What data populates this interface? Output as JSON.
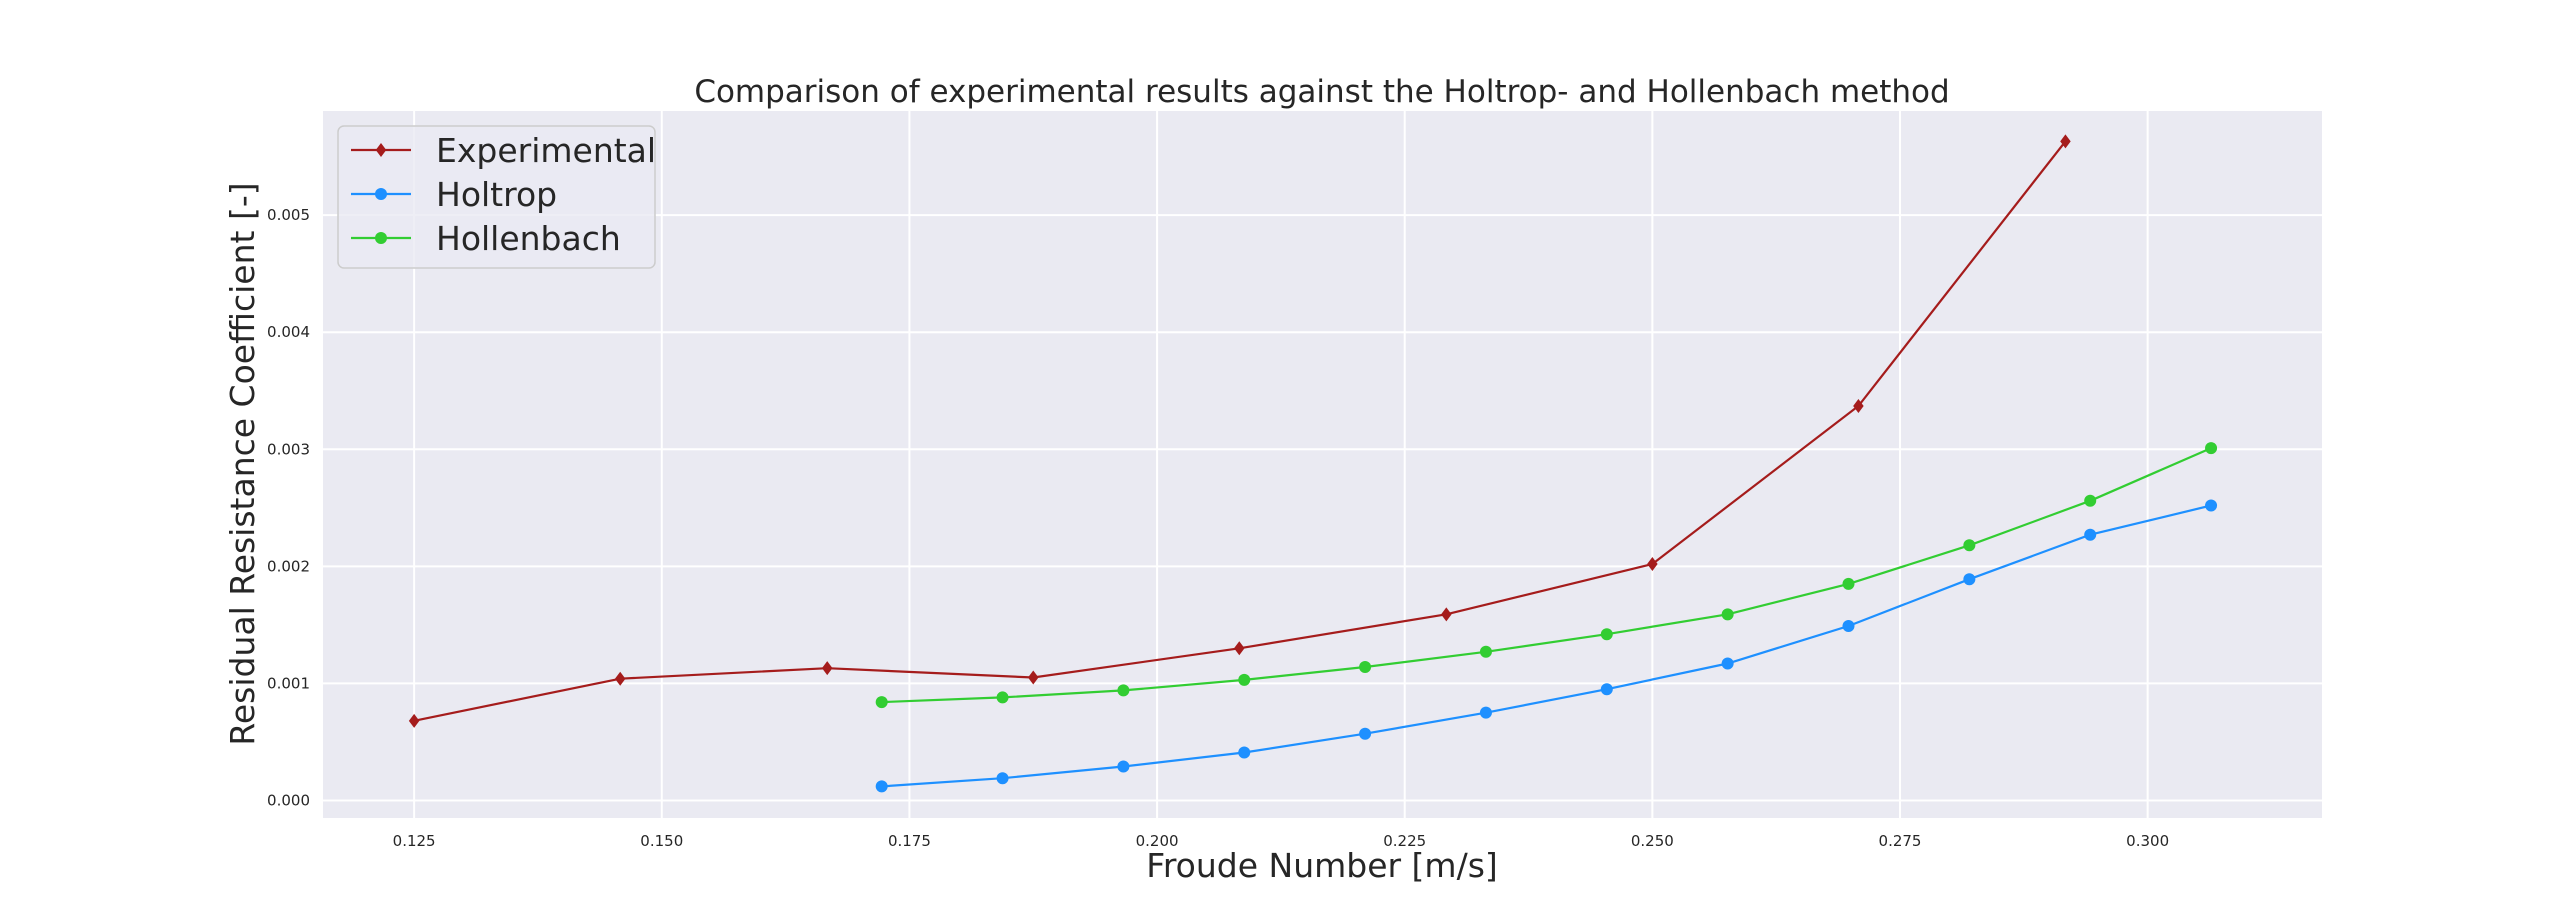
{
  "chart_data": {
    "type": "line",
    "title": "Comparison of experimental results against the Holtrop- and Hollenbach method",
    "xlabel": "Froude Number [m/s]",
    "ylabel": "Residual Resistance Coefficient [-]",
    "xlim": [
      0.1158,
      0.3176
    ],
    "ylim": [
      -0.00015,
      0.00589
    ],
    "xticks": [
      0.125,
      0.15,
      0.175,
      0.2,
      0.225,
      0.25,
      0.275,
      0.3
    ],
    "xtick_labels": [
      "0.125",
      "0.150",
      "0.175",
      "0.200",
      "0.225",
      "0.250",
      "0.275",
      "0.300"
    ],
    "yticks": [
      0.0,
      0.001,
      0.002,
      0.003,
      0.004,
      0.005
    ],
    "ytick_labels": [
      "0.000",
      "0.001",
      "0.002",
      "0.003",
      "0.004",
      "0.005"
    ],
    "grid": true,
    "legend_position": "top-left",
    "series": [
      {
        "name": "Experimental",
        "color": "#a51c1c",
        "marker": "diamond",
        "x": [
          0.125,
          0.1458,
          0.1667,
          0.1875,
          0.2083,
          0.2292,
          0.25,
          0.2708,
          0.2917
        ],
        "y": [
          0.00068,
          0.00104,
          0.00113,
          0.00105,
          0.0013,
          0.00159,
          0.00202,
          0.00337,
          0.00563
        ]
      },
      {
        "name": "Holtrop",
        "color": "#1e90ff",
        "marker": "circle",
        "x": [
          0.1722,
          0.1844,
          0.1966,
          0.2088,
          0.221,
          0.2332,
          0.2454,
          0.2576,
          0.2698,
          0.282,
          0.2942,
          0.3064
        ],
        "y": [
          0.00012,
          0.00019,
          0.00029,
          0.00041,
          0.00057,
          0.00075,
          0.00095,
          0.00117,
          0.00149,
          0.00189,
          0.00227,
          0.00252
        ]
      },
      {
        "name": "Hollenbach",
        "color": "#32cd32",
        "marker": "circle",
        "x": [
          0.1722,
          0.1844,
          0.1966,
          0.2088,
          0.221,
          0.2332,
          0.2454,
          0.2576,
          0.2698,
          0.282,
          0.2942,
          0.3064
        ],
        "y": [
          0.00084,
          0.00088,
          0.00094,
          0.00103,
          0.00114,
          0.00127,
          0.00142,
          0.00159,
          0.00185,
          0.00218,
          0.00256,
          0.00301
        ]
      }
    ]
  }
}
